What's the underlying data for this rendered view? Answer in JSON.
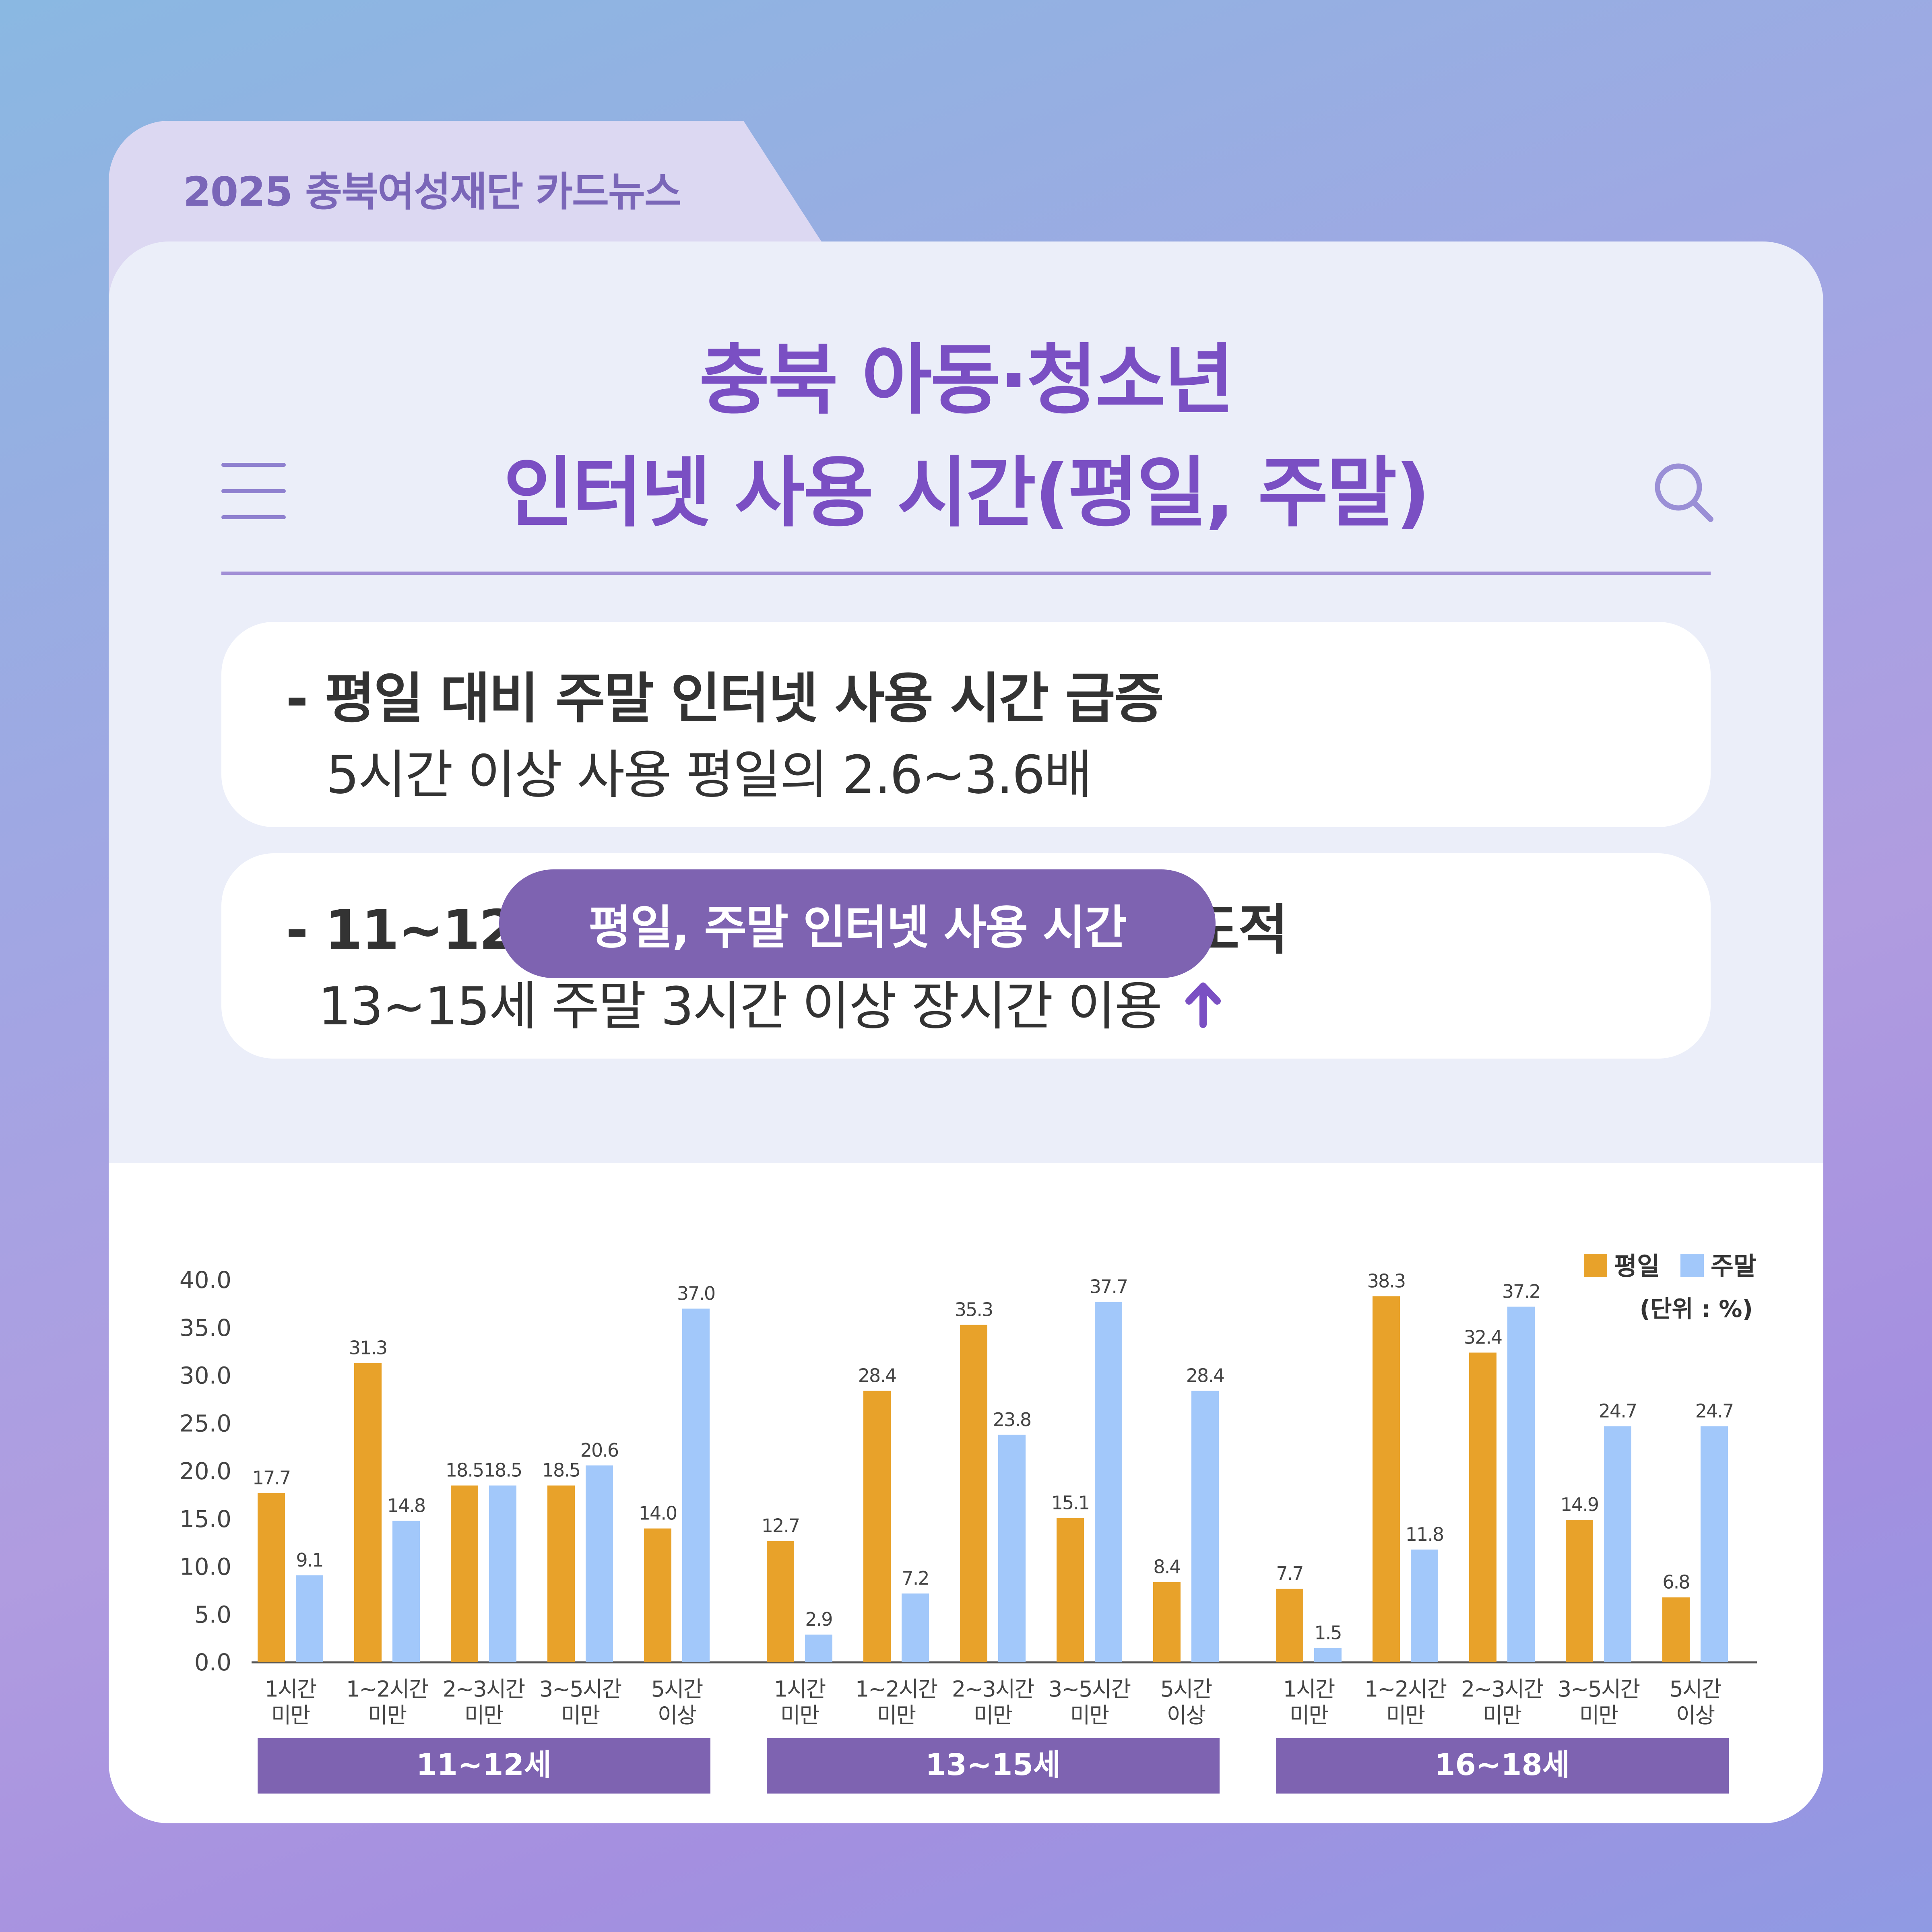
{
  "header": {
    "tag": "2025 충북여성재단 카드뉴스"
  },
  "title": {
    "line1": "충북 아동·청소년",
    "line2": "인터넷 사용 시간(평일, 주말)"
  },
  "icons": {
    "menu": "hamburger-menu-icon",
    "search": "search-icon",
    "arrow": "arrow-up-icon"
  },
  "highlights": [
    {
      "line1": "-  평일 대비 주말 인터넷 사용 시간 급증",
      "line2": "5시간 이상 사용 평일의 2.6~3.6배"
    },
    {
      "line1": "- 11~12세 주말 장시간 사용 비율이 압도적",
      "line2": "13~15세 주말 3시간 이상 장시간 이용"
    }
  ],
  "chart_data": {
    "type": "bar",
    "title": "평일, 주말 인터넷 사용 시간",
    "unit_label": "(단위 : %)",
    "ylim": [
      0,
      40
    ],
    "yticks": [
      "0.0",
      "5.0",
      "10.0",
      "15.0",
      "20.0",
      "25.0",
      "30.0",
      "35.0",
      "40.0"
    ],
    "categories": [
      "1시간\n미만",
      "1~2시간\n미만",
      "2~3시간\n미만",
      "3~5시간\n미만",
      "5시간\n이상"
    ],
    "legend": {
      "position": "top-right"
    },
    "colors": {
      "weekday": "#e8a22a",
      "weekend": "#a2c8fa"
    },
    "series_names": [
      "평일",
      "주말"
    ],
    "groups": [
      {
        "label": "11~12세",
        "weekday": [
          17.7,
          31.3,
          18.5,
          18.5,
          14.0
        ],
        "weekend": [
          9.1,
          14.8,
          18.5,
          20.6,
          37.0
        ]
      },
      {
        "label": "13~15세",
        "weekday": [
          12.7,
          28.4,
          35.3,
          15.1,
          8.4
        ],
        "weekend": [
          2.9,
          7.2,
          23.8,
          37.7,
          28.4
        ]
      },
      {
        "label": "16~18세",
        "weekday": [
          7.7,
          38.3,
          32.4,
          14.9,
          6.8
        ],
        "weekend": [
          1.5,
          11.8,
          37.2,
          24.7,
          24.7
        ]
      }
    ]
  },
  "theme": {
    "accent": "#7a4fc3",
    "group_bar": "#7e63b1",
    "text": "#333333"
  }
}
